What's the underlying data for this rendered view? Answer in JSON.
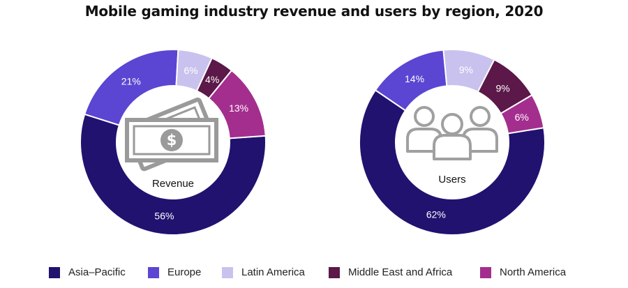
{
  "colors": {
    "Asia–Pacific": "#211270",
    "Europe": "#5a46d2",
    "Latin America": "#c9c2ee",
    "Middle East and Africa": "#5b1848",
    "North America": "#a42e8e"
  },
  "chart_data": {
    "type": "donut",
    "title": "Mobile gaming industry revenue and users by region, 2020",
    "legend_position": "bottom",
    "legend": [
      "Asia–Pacific",
      "Europe",
      "Latin America",
      "Middle East and Africa",
      "North America"
    ],
    "charts": [
      {
        "center_label": "Revenue",
        "center_icon": "money-bills-icon",
        "slices": [
          {
            "region": "Asia–Pacific",
            "value": 56,
            "label": "56%"
          },
          {
            "region": "Europe",
            "value": 21,
            "label": "21%"
          },
          {
            "region": "Latin America",
            "value": 6,
            "label": "6%"
          },
          {
            "region": "Middle East and Africa",
            "value": 4,
            "label": "4%"
          },
          {
            "region": "North America",
            "value": 13,
            "label": "13%"
          }
        ]
      },
      {
        "center_label": "Users",
        "center_icon": "users-group-icon",
        "slices": [
          {
            "region": "Asia–Pacific",
            "value": 62,
            "label": "62%"
          },
          {
            "region": "Europe",
            "value": 14,
            "label": "14%"
          },
          {
            "region": "Latin America",
            "value": 9,
            "label": "9%"
          },
          {
            "region": "Middle East and Africa",
            "value": 9,
            "label": "9%"
          },
          {
            "region": "North America",
            "value": 6,
            "label": "6%"
          }
        ]
      }
    ]
  }
}
